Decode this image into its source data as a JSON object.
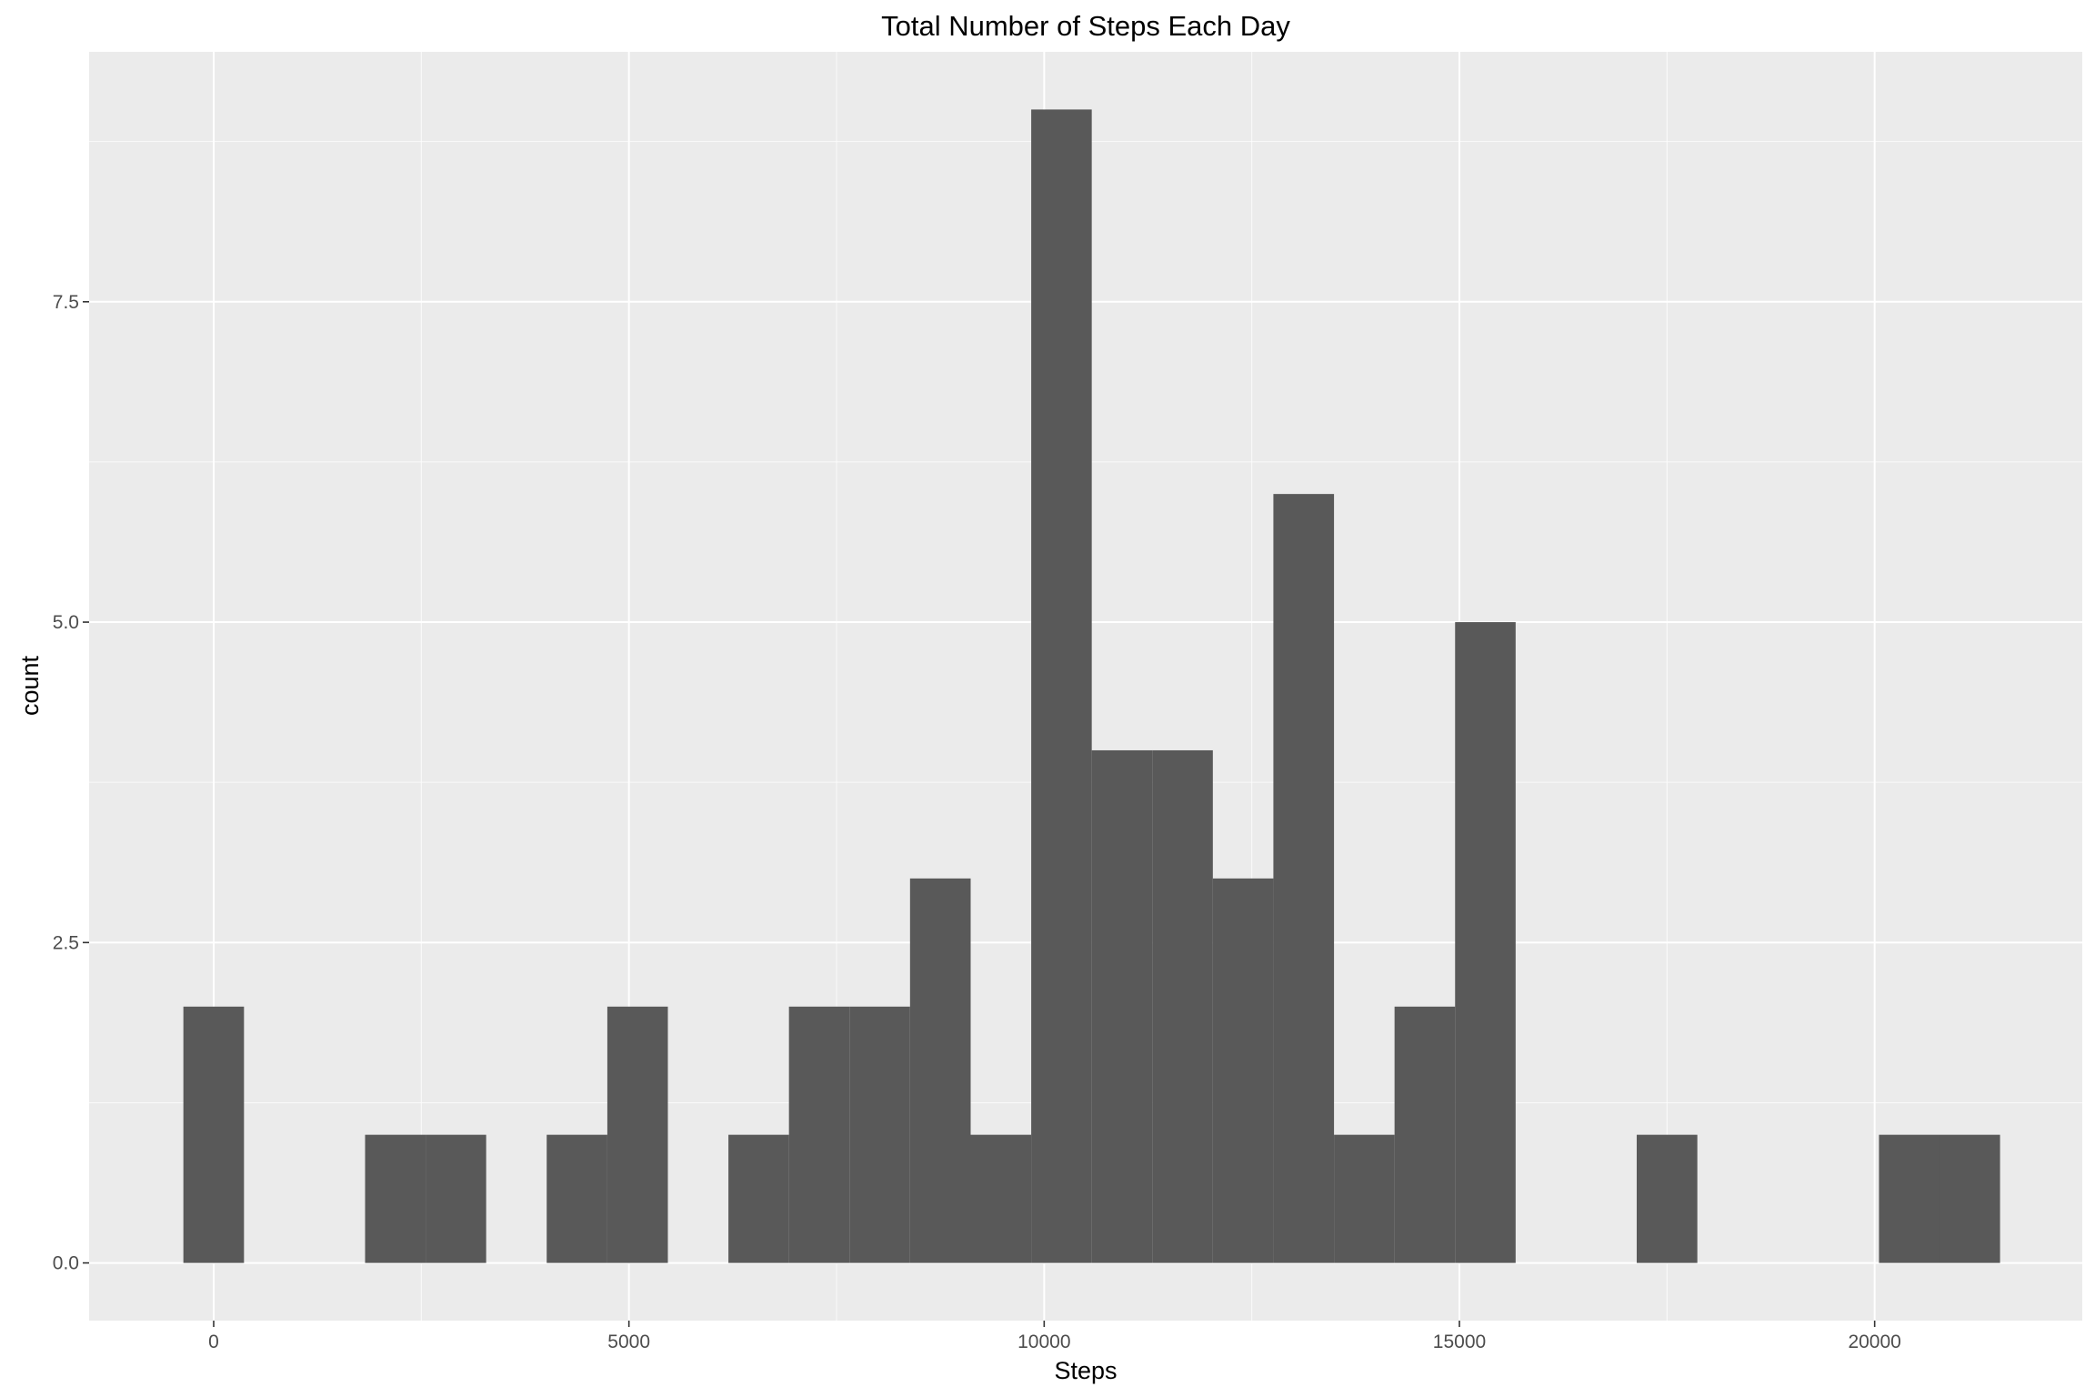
{
  "chart_data": {
    "type": "bar",
    "title": "Total Number of Steps Each Day",
    "xlabel": "Steps",
    "ylabel": "count",
    "xlim": [
      -1500,
      22500
    ],
    "ylim": [
      -0.45,
      9.45
    ],
    "x_ticks": [
      0,
      5000,
      10000,
      15000,
      20000
    ],
    "x_tick_labels": [
      "0",
      "5000",
      "10000",
      "15000",
      "20000"
    ],
    "x_minor_grid": [
      2500,
      7500,
      12500,
      17500
    ],
    "y_ticks": [
      0,
      2.5,
      5,
      7.5
    ],
    "y_tick_labels": [
      "0.0",
      "2.5",
      "5.0",
      "7.5"
    ],
    "y_minor_grid": [
      1.25,
      3.75,
      6.25,
      8.75
    ],
    "bin_width": 729,
    "bins": [
      {
        "x0": -365,
        "x1": 365,
        "count": 2
      },
      {
        "x0": 1823,
        "x1": 2552,
        "count": 1
      },
      {
        "x0": 2552,
        "x1": 3281,
        "count": 1
      },
      {
        "x0": 4010,
        "x1": 4740,
        "count": 1
      },
      {
        "x0": 4740,
        "x1": 5469,
        "count": 2
      },
      {
        "x0": 6198,
        "x1": 6927,
        "count": 1
      },
      {
        "x0": 6927,
        "x1": 7656,
        "count": 2
      },
      {
        "x0": 7656,
        "x1": 8385,
        "count": 2
      },
      {
        "x0": 8385,
        "x1": 9115,
        "count": 3
      },
      {
        "x0": 9115,
        "x1": 9844,
        "count": 1
      },
      {
        "x0": 9844,
        "x1": 10573,
        "count": 9
      },
      {
        "x0": 10573,
        "x1": 11302,
        "count": 4
      },
      {
        "x0": 11302,
        "x1": 12031,
        "count": 4
      },
      {
        "x0": 12031,
        "x1": 12760,
        "count": 3
      },
      {
        "x0": 12760,
        "x1": 13490,
        "count": 6
      },
      {
        "x0": 13490,
        "x1": 14219,
        "count": 1
      },
      {
        "x0": 14219,
        "x1": 14948,
        "count": 2
      },
      {
        "x0": 14948,
        "x1": 15677,
        "count": 5
      },
      {
        "x0": 17135,
        "x1": 17865,
        "count": 1
      },
      {
        "x0": 20052,
        "x1": 20781,
        "count": 1
      },
      {
        "x0": 20781,
        "x1": 21510,
        "count": 1
      }
    ],
    "bar_color": "#595959",
    "panel_color": "#ebebeb",
    "grid": true,
    "legend": "none"
  }
}
